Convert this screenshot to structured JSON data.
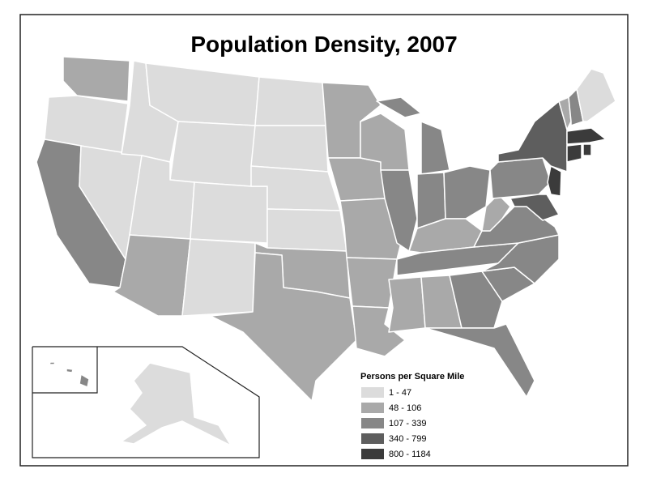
{
  "title": "Population Density, 2007",
  "legend": {
    "title": "Persons per Square Mile",
    "items": [
      {
        "label": "1 - 47",
        "color": "#dcdcdc"
      },
      {
        "label": "48 - 106",
        "color": "#a9a9a9"
      },
      {
        "label": "107 - 339",
        "color": "#878787"
      },
      {
        "label": "340 - 799",
        "color": "#5e5e5e"
      },
      {
        "label": "800 - 1184",
        "color": "#3b3b3b"
      }
    ]
  }
}
